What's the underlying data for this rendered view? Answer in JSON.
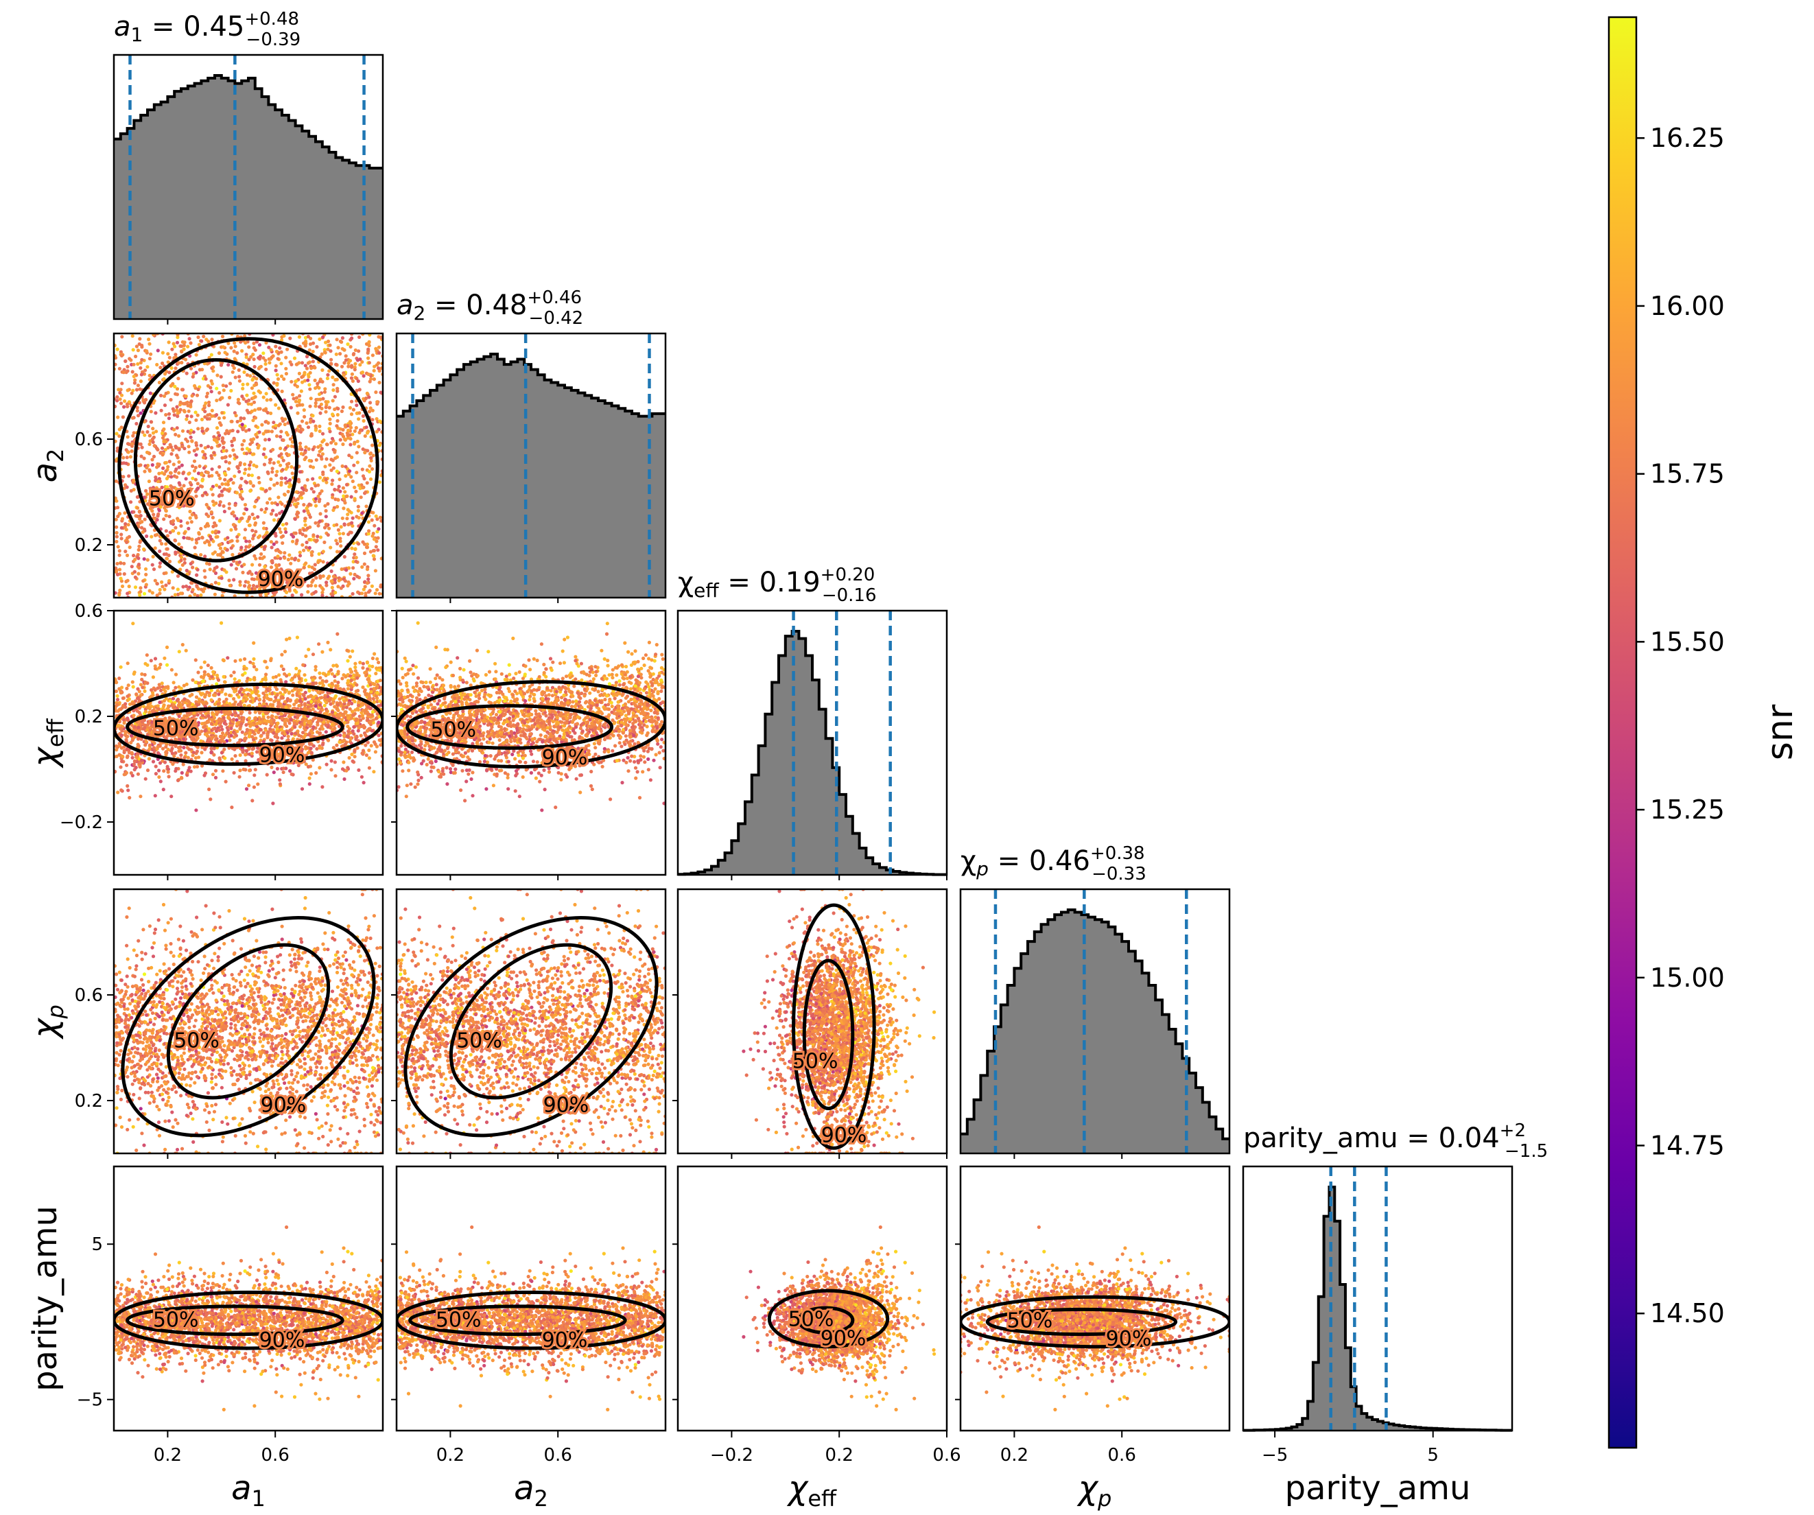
{
  "colorbar": {
    "label": "snr",
    "min": 14.3,
    "max": 16.43,
    "ticks": [
      "14.50",
      "14.75",
      "15.00",
      "15.25",
      "15.50",
      "15.75",
      "16.00",
      "16.25"
    ],
    "colormap": "plasma"
  },
  "chart_data": {
    "type": "corner",
    "parameters": [
      "a_1",
      "a_2",
      "chi_eff",
      "chi_p",
      "parity_amu"
    ],
    "axis_labels": [
      "a₁",
      "a₂",
      "χeff",
      "χp",
      "parity_amu"
    ],
    "titles": [
      {
        "param": "a_1",
        "median": "0.45",
        "plus": "+0.48",
        "minus": "−0.39"
      },
      {
        "param": "a_2",
        "median": "0.48",
        "plus": "+0.46",
        "minus": "−0.42"
      },
      {
        "param": "chi_eff",
        "median": "0.19",
        "plus": "+0.20",
        "minus": "−0.16"
      },
      {
        "param": "chi_p",
        "median": "0.46",
        "plus": "+0.38",
        "minus": "−0.33"
      },
      {
        "param": "parity_amu",
        "median": "0.04",
        "plus": "+2",
        "minus": "−1.5"
      }
    ],
    "ranges": [
      [
        0.0,
        1.0
      ],
      [
        0.0,
        1.0
      ],
      [
        -0.4,
        0.6
      ],
      [
        0.0,
        1.0
      ],
      [
        -7.0,
        10.0
      ]
    ],
    "ticks": [
      [
        "0.2",
        "0.6"
      ],
      [
        "0.2",
        "0.6"
      ],
      [
        "−0.2",
        "0.2",
        "0.6"
      ],
      [
        "0.2",
        "0.6"
      ],
      [
        "−5",
        "5"
      ]
    ],
    "tick_values": [
      [
        0.2,
        0.6
      ],
      [
        0.2,
        0.6
      ],
      [
        -0.2,
        0.2,
        0.6
      ],
      [
        0.2,
        0.6
      ],
      [
        -5,
        5
      ]
    ],
    "quantile_lines": [
      [
        0.06,
        0.45,
        0.93
      ],
      [
        0.06,
        0.48,
        0.94
      ],
      [
        0.03,
        0.19,
        0.39
      ],
      [
        0.13,
        0.46,
        0.84
      ],
      [
        -1.46,
        0.04,
        2.04
      ]
    ],
    "histograms": [
      {
        "param": "a_1",
        "bins": 40,
        "counts": [
          68,
          70,
          72,
          75,
          77,
          79,
          81,
          82,
          84,
          86,
          87,
          88,
          89,
          90,
          91,
          92,
          91,
          90,
          89,
          90,
          91,
          87,
          84,
          81,
          79,
          77,
          75,
          73,
          71,
          69,
          67,
          65,
          63,
          61,
          60,
          59,
          58,
          58,
          57,
          57
        ]
      },
      {
        "param": "a_2",
        "bins": 40,
        "counts": [
          70,
          72,
          74,
          76,
          78,
          80,
          82,
          84,
          86,
          88,
          90,
          91,
          92,
          93,
          94,
          92,
          90,
          91,
          92,
          90,
          88,
          86,
          84,
          83,
          82,
          81,
          80,
          79,
          78,
          77,
          76,
          75,
          74,
          73,
          72,
          71,
          70,
          70,
          71,
          71
        ]
      },
      {
        "param": "chi_eff",
        "bins": 40,
        "counts": [
          0.2,
          0.4,
          0.7,
          1.2,
          2,
          3.5,
          6,
          9,
          14,
          21,
          30,
          41,
          53,
          66,
          79,
          90,
          98,
          100,
          97,
          90,
          80,
          68,
          56,
          44,
          33,
          24,
          17,
          11,
          7,
          4.5,
          3,
          2,
          1.4,
          1,
          0.7,
          0.5,
          0.3,
          0.2,
          0.1,
          0.1
        ]
      },
      {
        "param": "chi_p",
        "bins": 40,
        "counts": [
          8,
          14,
          22,
          32,
          42,
          52,
          61,
          69,
          76,
          82,
          87,
          91,
          94,
          96,
          98,
          99,
          100,
          99,
          98,
          97,
          96,
          95,
          93,
          90,
          87,
          83,
          79,
          74,
          69,
          63,
          57,
          51,
          45,
          39,
          33,
          27,
          21,
          15,
          10,
          6
        ]
      },
      {
        "param": "parity_amu",
        "bins": 50,
        "counts": [
          0.1,
          0.1,
          0.2,
          0.2,
          0.3,
          0.4,
          0.5,
          0.7,
          1,
          1.5,
          2.5,
          5,
          12,
          28,
          55,
          88,
          100,
          86,
          60,
          34,
          18,
          10,
          7,
          5.5,
          4.5,
          3.8,
          3.2,
          2.7,
          2.3,
          2,
          1.7,
          1.5,
          1.3,
          1.1,
          1,
          0.9,
          0.8,
          0.7,
          0.6,
          0.5,
          0.45,
          0.4,
          0.35,
          0.3,
          0.25,
          0.2,
          0.2,
          0.15,
          0.1,
          0.1
        ]
      }
    ],
    "contour_levels": [
      "50%",
      "90%"
    ],
    "scatter_colored_by": "snr"
  }
}
